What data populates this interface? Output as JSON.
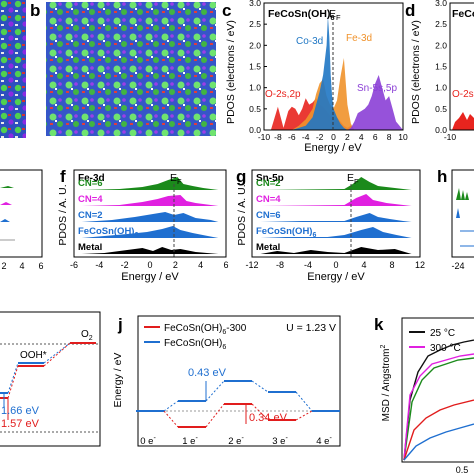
{
  "panels": {
    "a": {
      "letter": ""
    },
    "b": {
      "letter": "b"
    },
    "c": {
      "letter": "c",
      "title": "FeCoSn(OH)",
      "title_sub": "6",
      "fermi": "E",
      "fermi_sub": "F",
      "ylabel": "PDOS (electrons / eV)",
      "xlabel": "Energy / eV",
      "yticks": [
        "0.0",
        "0.5",
        "1.0",
        "1.5",
        "2.0",
        "2.5",
        "3.0"
      ],
      "xticks": [
        "-10",
        "-8",
        "-6",
        "-4",
        "-2",
        "0",
        "2",
        "4",
        "6",
        "8",
        "10"
      ],
      "labels": {
        "co": "Co-3d",
        "fe": "Fe-3d",
        "o": "O-2s,2p",
        "sn": "Sn-5s,5p"
      }
    },
    "d": {
      "letter": "d",
      "title": "FeCoSn",
      "ylabel": "PDOS (electrons / eV)",
      "yticks": [
        "0.0",
        "0.5",
        "1.0",
        "1.5",
        "2.0",
        "2.5",
        "3.0"
      ],
      "xticks": [
        "-10"
      ],
      "o_label": "O-2s"
    },
    "e": {
      "xticks": [
        "2",
        "4",
        "6"
      ]
    },
    "f": {
      "letter": "f",
      "element": "Fe-3d",
      "fermi": "E",
      "fermi_sub": "F",
      "ylabel": "PDOS / A. U.",
      "xlabel": "Energy / eV",
      "xticks": [
        "-6",
        "-4",
        "-2",
        "0",
        "2",
        "4",
        "6"
      ],
      "traces": [
        "CN=6",
        "CN=4",
        "CN=2",
        "FeCoSn(OH)",
        "Metal"
      ],
      "sub": "6"
    },
    "g": {
      "letter": "g",
      "element": "Sn-5p",
      "fermi": "E",
      "fermi_sub": "F",
      "ylabel": "PDOS / A. U.",
      "xlabel": "Energy / eV",
      "xticks": [
        "-12",
        "-8",
        "-4",
        "0",
        "4",
        "8",
        "12"
      ],
      "traces": [
        "CN=2",
        "CN=4",
        "CN=6",
        "FeCoSn(OH)",
        "Metal"
      ],
      "sub": "6"
    },
    "h": {
      "letter": "h",
      "xticks": [
        "-24"
      ]
    },
    "i": {
      "ooh": "OOH*",
      "o2": "O",
      "o2_sub": "2",
      "e1": "1.66 eV",
      "e2": "1.57 eV"
    },
    "j": {
      "letter": "j",
      "legend1": "FeCoSn(OH)",
      "legend1_sub": "6",
      "legend1_suffix": "-300",
      "legend2": "FeCoSn(OH)",
      "legend2_sub": "6",
      "potential": "U = 1.23 V",
      "ylabel": "Energy / eV",
      "xticks": [
        "0 e",
        "1 e",
        "2 e",
        "3 e",
        "4 e"
      ],
      "blue_barrier": "0.43 eV",
      "red_barrier": "0.34 eV"
    },
    "k": {
      "letter": "k",
      "ylabel": "MSD / Angstrom",
      "ylabel_sup": "2",
      "legend": [
        "25 °C",
        "300 °C"
      ],
      "xticks": [
        "0.5"
      ]
    }
  },
  "colors": {
    "co": "#1f77c4",
    "fe": "#f0922b",
    "o": "#e8241e",
    "sn": "#8b3fd6",
    "green": "#1b8a1b",
    "magenta": "#e020e0",
    "blue": "#1f6fd0",
    "black": "#000000",
    "red": "#e11d1d"
  },
  "chart_data": [
    {
      "type": "area",
      "panel": "c",
      "xlim": [
        -10,
        10
      ],
      "ylim": [
        0,
        3.0
      ],
      "series": [
        {
          "name": "O-2s,2p",
          "x": [
            -10,
            -9,
            -8,
            -7.2,
            -6.5,
            -6,
            -5.5,
            -5,
            -4.5,
            -4,
            -3.5,
            -3,
            -2.5,
            -2,
            -1.5,
            -1,
            -0.5,
            0,
            0.5,
            1,
            1.5,
            2,
            2.5,
            3
          ],
          "y": [
            0,
            0,
            0.55,
            0.05,
            0.45,
            0.55,
            0.5,
            0.35,
            0.5,
            0.75,
            0.6,
            0.65,
            0.75,
            0.6,
            0.55,
            0.45,
            0.35,
            0.25,
            0.3,
            0.2,
            0.1,
            0.05,
            0.1,
            0
          ]
        },
        {
          "name": "Fe-3d",
          "x": [
            -6,
            -5,
            -4,
            -3,
            -2.5,
            -2,
            -1.5,
            -1,
            -0.5,
            0,
            0.5,
            1,
            1.5,
            2,
            2.5,
            3
          ],
          "y": [
            0,
            0.1,
            0.25,
            0.5,
            0.85,
            1.1,
            1.2,
            0.8,
            0.6,
            0.5,
            0.7,
            1.25,
            1.7,
            0.6,
            0.15,
            0
          ]
        },
        {
          "name": "Co-3d",
          "x": [
            -6,
            -5,
            -4,
            -3,
            -2.5,
            -2,
            -1.5,
            -1,
            -0.8,
            -0.6,
            -0.4,
            -0.2,
            0,
            0.5,
            1,
            1.5,
            2
          ],
          "y": [
            0,
            0.05,
            0.1,
            0.3,
            0.6,
            0.9,
            1.3,
            2.0,
            2.7,
            2.2,
            1.3,
            0.8,
            0.5,
            0.3,
            0.15,
            0.05,
            0
          ]
        },
        {
          "name": "Sn-5s,5p",
          "x": [
            2,
            2.5,
            3,
            3.5,
            4,
            4.5,
            5,
            5.5,
            6,
            6.5,
            7,
            7.5,
            8,
            8.5,
            9,
            9.5,
            10
          ],
          "y": [
            0,
            0.05,
            0.2,
            0.4,
            0.45,
            0.5,
            0.6,
            0.8,
            1.1,
            1.3,
            1.0,
            0.7,
            0.8,
            0.5,
            0.2,
            0.1,
            0
          ]
        }
      ]
    }
  ]
}
